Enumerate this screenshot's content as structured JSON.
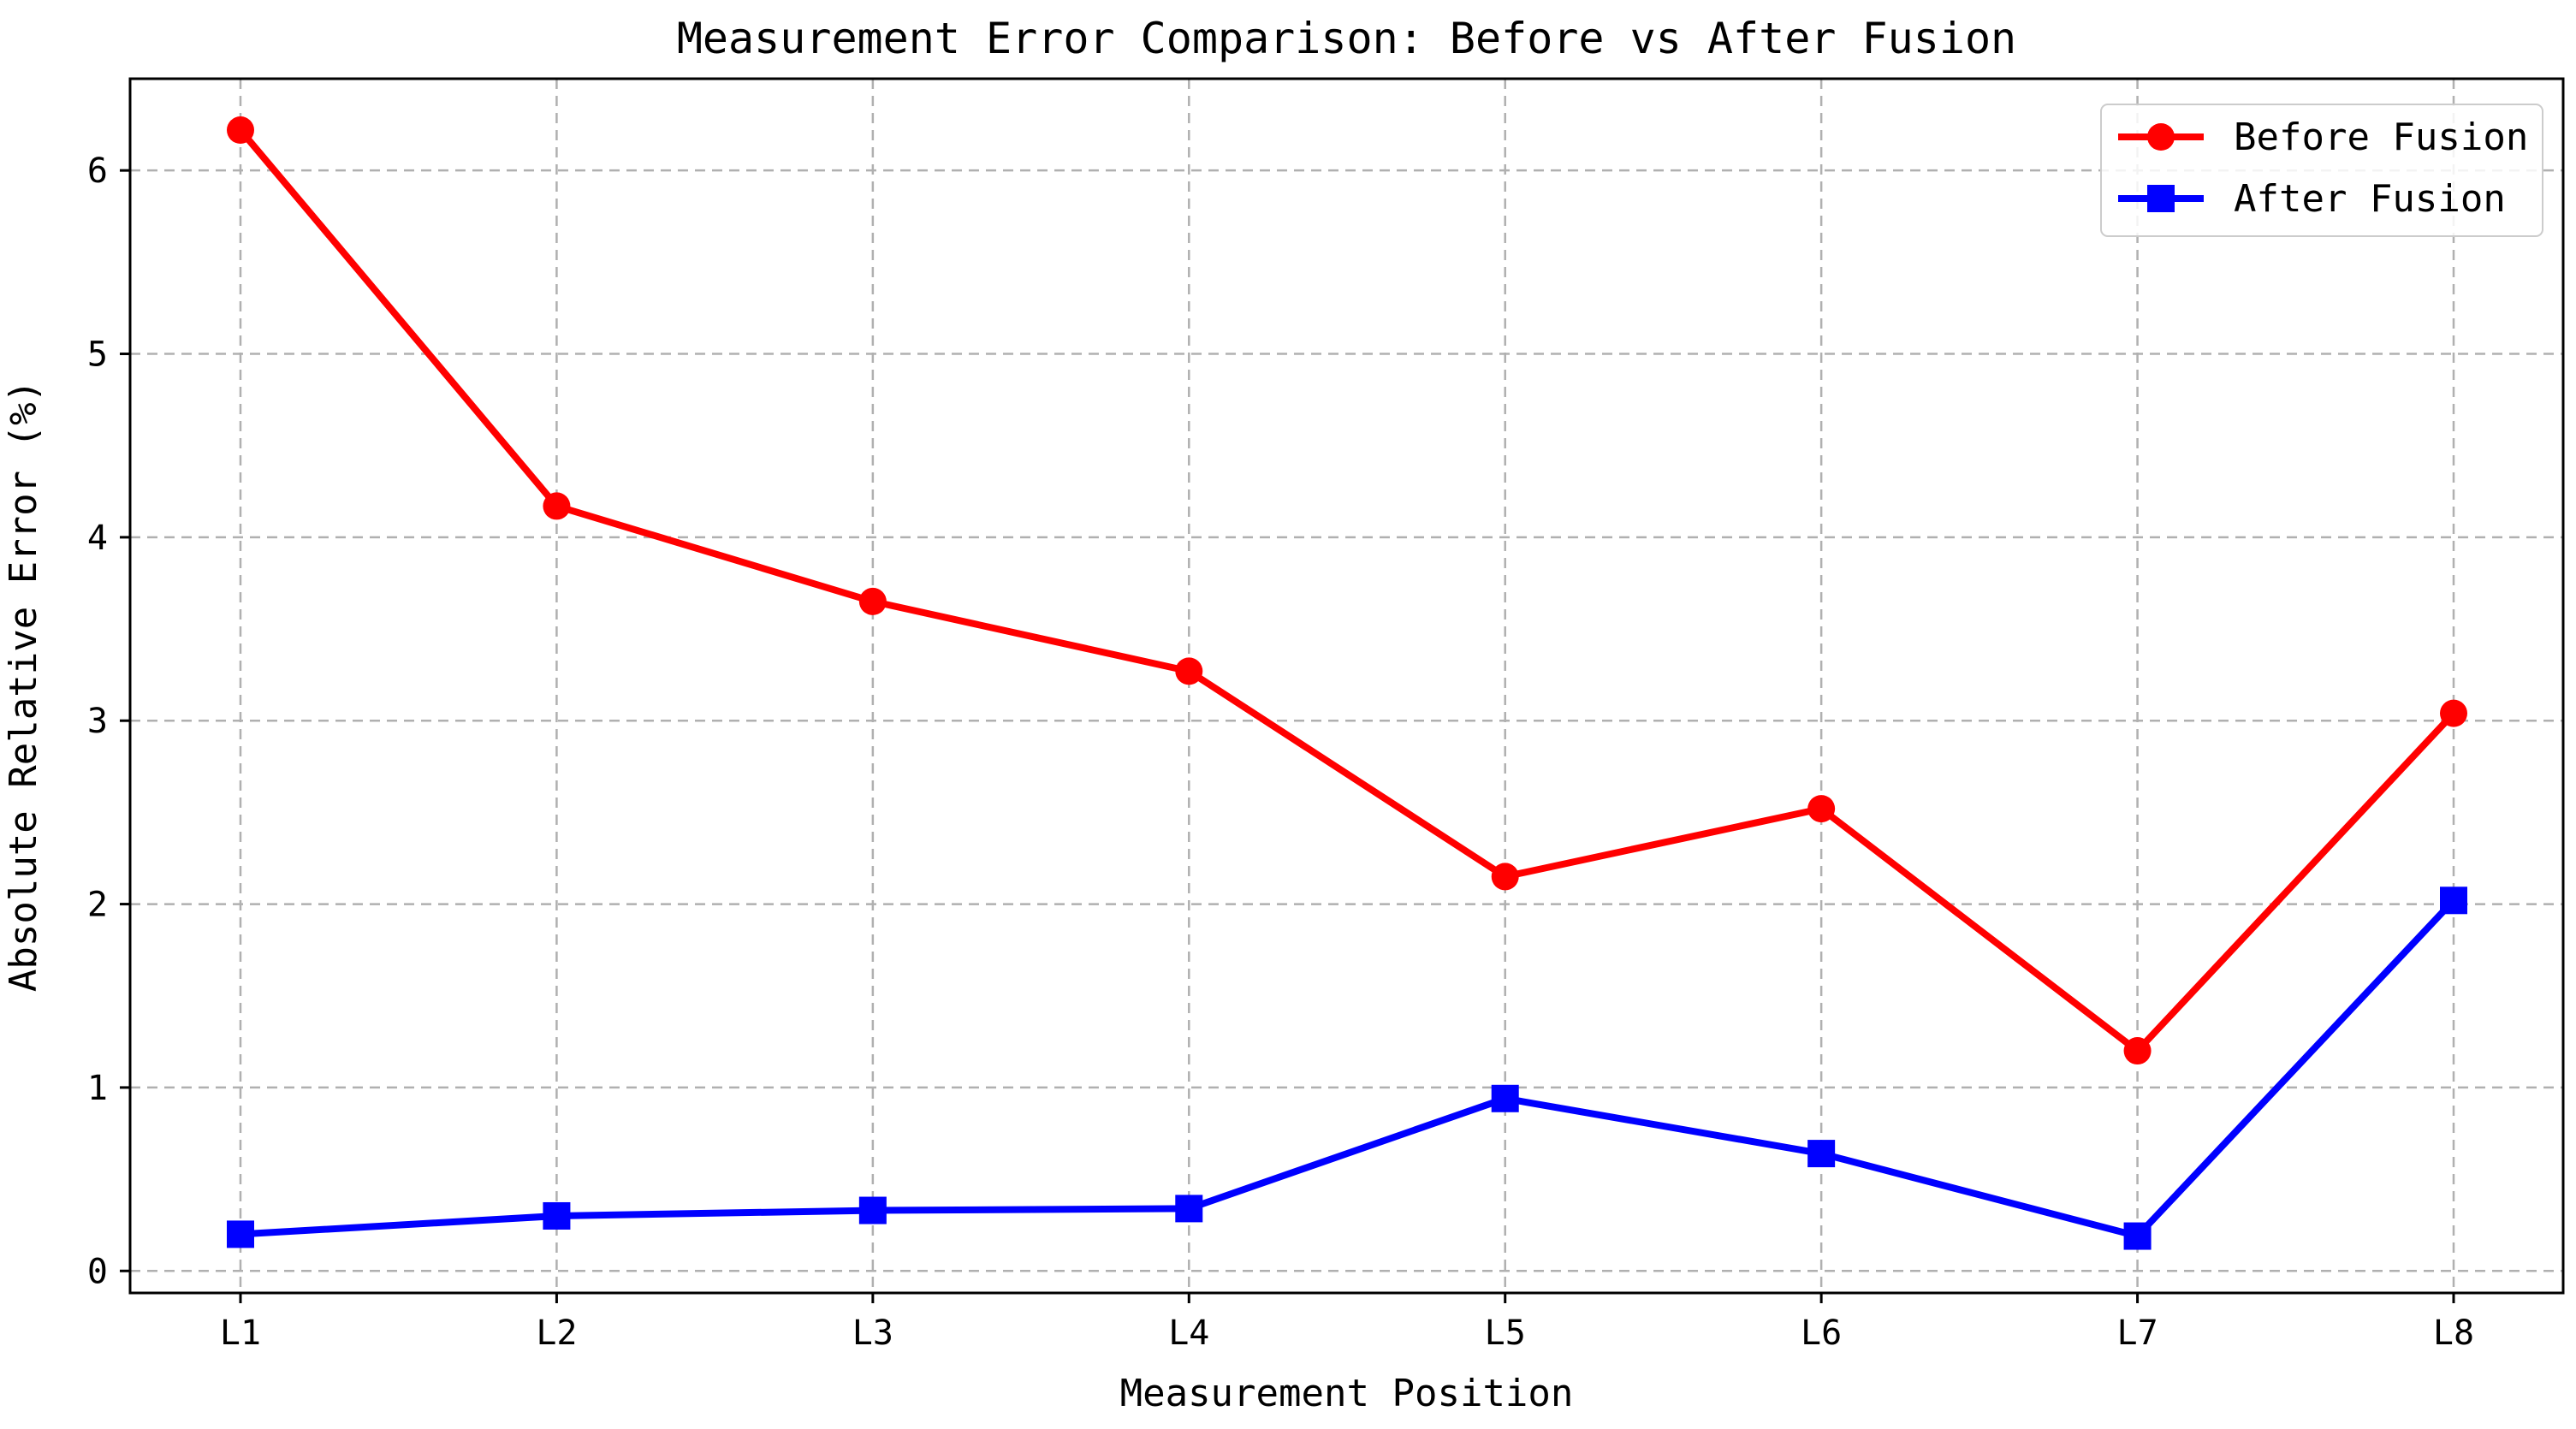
{
  "chart_data": {
    "type": "line",
    "title": "Measurement Error Comparison: Before vs After Fusion",
    "xlabel": "Measurement Position",
    "ylabel": "Absolute Relative Error (%)",
    "categories": [
      "L1",
      "L2",
      "L3",
      "L4",
      "L5",
      "L6",
      "L7",
      "L8"
    ],
    "ylim": [
      -0.12,
      6.5
    ],
    "yticks": [
      0,
      1,
      2,
      3,
      4,
      5,
      6
    ],
    "grid": true,
    "legend_position": "top-right",
    "series": [
      {
        "name": "Before Fusion",
        "color": "#ff0000",
        "marker": "circle",
        "values": [
          6.22,
          4.17,
          3.65,
          3.27,
          2.15,
          2.52,
          1.2,
          3.04
        ]
      },
      {
        "name": "After Fusion",
        "color": "#0000ff",
        "marker": "square",
        "values": [
          0.2,
          0.3,
          0.33,
          0.34,
          0.94,
          0.64,
          0.19,
          2.02
        ]
      }
    ]
  }
}
